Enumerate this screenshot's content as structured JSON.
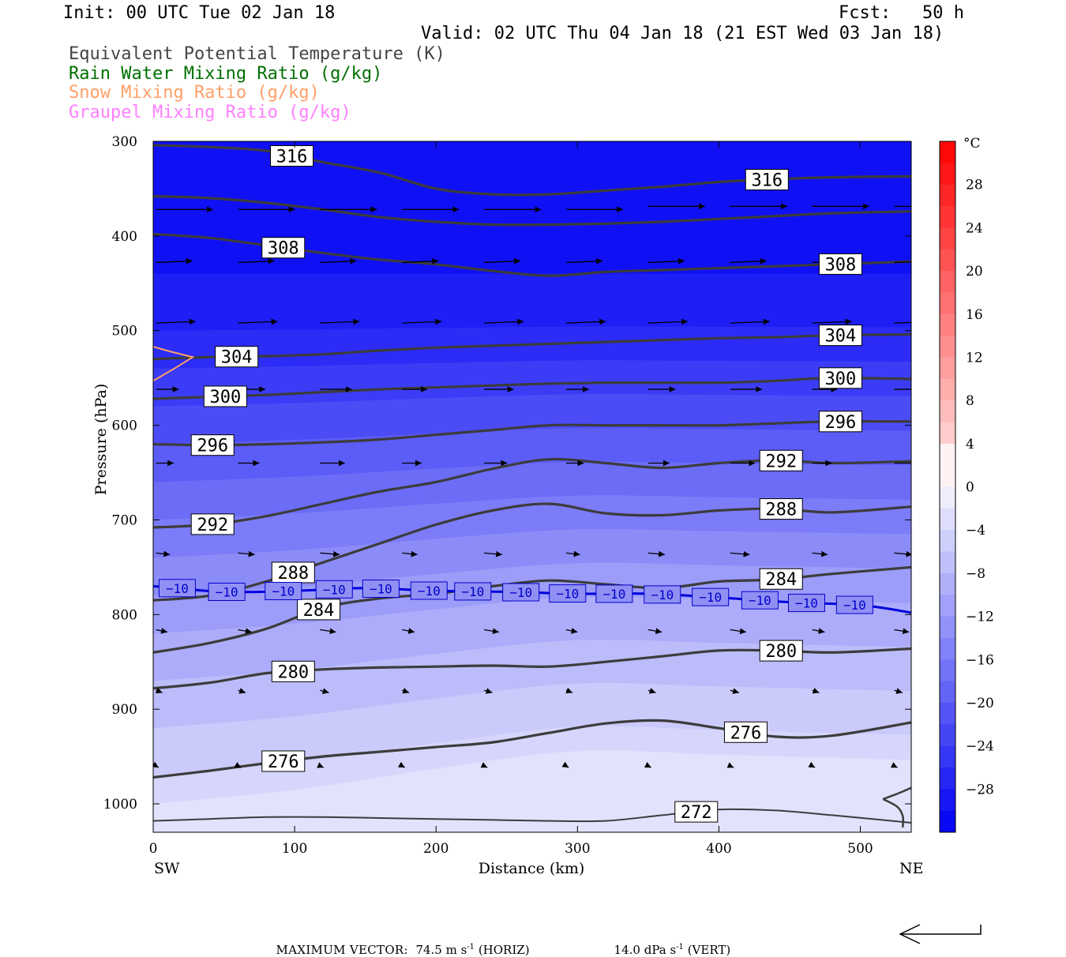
{
  "header": {
    "init": "Init: 00 UTC Tue 02 Jan 18",
    "fcst": "Fcst:   50 h",
    "valid": "Valid: 02 UTC Thu 04 Jan 18 (21 EST Wed 03 Jan 18)",
    "fields": [
      {
        "label": "Equivalent Potential Temperature (K)",
        "color": "#444444"
      },
      {
        "label": "Rain Water Mixing Ratio (g/kg)",
        "color": "#007000"
      },
      {
        "label": "Snow Mixing Ratio (g/kg)",
        "color": "#ff9f68"
      },
      {
        "label": "Graupel Mixing Ratio (g/kg)",
        "color": "#ff80ff"
      }
    ]
  },
  "chart_data": {
    "type": "cross-section",
    "xlabel": "Distance (km)",
    "ylabel": "Pressure (hPa)",
    "xlim": [
      0,
      536
    ],
    "ylim": [
      1030,
      300
    ],
    "x_ticks": [
      0,
      100,
      200,
      300,
      400,
      500
    ],
    "y_ticks": [
      300,
      400,
      500,
      600,
      700,
      800,
      900,
      1000
    ],
    "x_end_labels": {
      "left": "SW",
      "right": "NE"
    },
    "colorbar": {
      "unit": "°C",
      "labels": [
        28,
        24,
        20,
        16,
        12,
        8,
        4,
        0,
        -4,
        -8,
        -12,
        -16,
        -20,
        -24,
        -28
      ],
      "range": [
        -32,
        32
      ],
      "step": 2
    },
    "theta_e_contours": [
      {
        "level": 316,
        "label": "316",
        "x": [
          0,
          40,
          80,
          120,
          160,
          200,
          240,
          280,
          320,
          360,
          400,
          440,
          480,
          536
        ],
        "p": [
          304,
          306,
          310,
          322,
          333,
          350,
          356,
          356,
          352,
          348,
          343,
          340,
          338,
          337
        ]
      },
      {
        "level": 312,
        "label": "",
        "x": [
          0,
          40,
          80,
          120,
          160,
          200,
          240,
          280,
          320,
          360,
          400,
          440,
          480,
          536
        ],
        "p": [
          358,
          360,
          365,
          372,
          380,
          385,
          388,
          388,
          387,
          385,
          382,
          379,
          376,
          374
        ]
      },
      {
        "level": 308,
        "label": "308",
        "x": [
          0,
          40,
          80,
          120,
          160,
          200,
          240,
          280,
          320,
          360,
          400,
          440,
          480,
          536
        ],
        "p": [
          398,
          402,
          410,
          418,
          425,
          430,
          437,
          442,
          438,
          436,
          434,
          432,
          430,
          427
        ]
      },
      {
        "level": 304,
        "label": "304",
        "x": [
          0,
          40,
          80,
          120,
          160,
          200,
          240,
          280,
          320,
          360,
          400,
          440,
          480,
          536
        ],
        "p": [
          530,
          528,
          527,
          525,
          521,
          518,
          516,
          514,
          512,
          510,
          508,
          507,
          505,
          504
        ]
      },
      {
        "level": 300,
        "label": "300",
        "x": [
          0,
          40,
          80,
          120,
          160,
          200,
          240,
          280,
          320,
          360,
          400,
          440,
          480,
          536
        ],
        "p": [
          572,
          570,
          568,
          565,
          562,
          560,
          558,
          556,
          555,
          555,
          555,
          553,
          550,
          551
        ]
      },
      {
        "level": 296,
        "label": "296",
        "x": [
          0,
          40,
          80,
          120,
          160,
          200,
          240,
          280,
          320,
          360,
          400,
          440,
          480,
          536
        ],
        "p": [
          620,
          621,
          620,
          618,
          615,
          610,
          605,
          600,
          600,
          600,
          600,
          598,
          596,
          596
        ]
      },
      {
        "level": 292,
        "label": "292",
        "x": [
          0,
          40,
          80,
          120,
          160,
          200,
          240,
          280,
          320,
          360,
          400,
          440,
          480,
          536
        ],
        "p": [
          708,
          705,
          696,
          683,
          670,
          660,
          646,
          636,
          640,
          645,
          640,
          637,
          640,
          638
        ]
      },
      {
        "level": 288,
        "label": "288",
        "x": [
          0,
          40,
          80,
          120,
          160,
          200,
          240,
          280,
          320,
          360,
          400,
          440,
          480,
          536
        ],
        "p": [
          785,
          780,
          765,
          745,
          725,
          705,
          690,
          683,
          693,
          695,
          690,
          688,
          692,
          686
        ]
      },
      {
        "level": 284,
        "label": "284",
        "x": [
          0,
          40,
          80,
          120,
          160,
          200,
          240,
          280,
          320,
          360,
          400,
          440,
          480,
          536
        ],
        "p": [
          840,
          830,
          815,
          793,
          783,
          778,
          770,
          764,
          768,
          772,
          765,
          763,
          757,
          750
        ]
      },
      {
        "level": 280,
        "label": "280",
        "x": [
          0,
          40,
          80,
          120,
          160,
          200,
          240,
          280,
          320,
          360,
          400,
          440,
          480,
          536
        ],
        "p": [
          878,
          872,
          862,
          858,
          856,
          855,
          854,
          855,
          850,
          844,
          838,
          838,
          840,
          836
        ]
      },
      {
        "level": 276,
        "label": "276",
        "x": [
          0,
          40,
          80,
          120,
          160,
          200,
          240,
          280,
          320,
          360,
          400,
          440,
          480,
          536
        ],
        "p": [
          972,
          965,
          957,
          950,
          945,
          940,
          935,
          925,
          915,
          912,
          920,
          929,
          928,
          914
        ]
      },
      {
        "level": 272,
        "label": "272",
        "x": [
          0,
          40,
          80,
          120,
          160,
          200,
          240,
          280,
          320,
          360,
          400,
          440,
          480,
          536
        ],
        "p": [
          1018,
          1016,
          1014,
          1014,
          1015,
          1016,
          1017,
          1018,
          1018,
          1012,
          1006,
          1007,
          1012,
          1020
        ]
      }
    ],
    "isotherm_minus10": {
      "x": [
        0,
        50,
        100,
        150,
        200,
        250,
        300,
        350,
        400,
        450,
        500,
        536
      ],
      "p": [
        770,
        776,
        775,
        772,
        775,
        776,
        778,
        778,
        782,
        787,
        790,
        798
      ],
      "label_positions_km": [
        17,
        52,
        92,
        128,
        161,
        195,
        226,
        260,
        293,
        326,
        360,
        394,
        429,
        462,
        496
      ],
      "label_text": "-10",
      "color": "#0000dd"
    },
    "snow_mixing_ratio": {
      "color": "#ff9f68",
      "x": [
        0,
        12,
        28,
        15,
        0
      ],
      "p": [
        517,
        522,
        528,
        540,
        553
      ]
    },
    "max_vector": {
      "horiz": "74.5 m s",
      "horiz_exp": "-1",
      "horiz_dir": "(HORIZ)",
      "vert": "14.0 dPa s",
      "vert_exp": "-1",
      "vert_dir": "(VERT)",
      "label": "MAXIMUM VECTOR:"
    }
  }
}
